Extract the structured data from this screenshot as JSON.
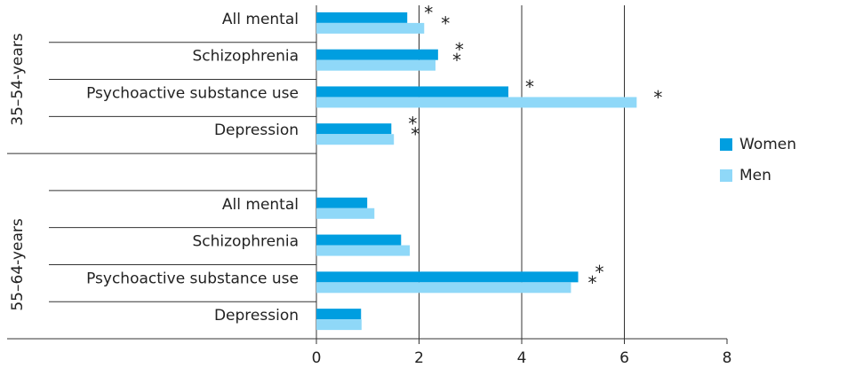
{
  "chart_data": {
    "type": "bar",
    "orientation": "horizontal",
    "group_labels": [
      "35–54-years",
      "55–64-years"
    ],
    "categories": [
      "All mental",
      "Schizophrenia",
      "Psychoactive substance use",
      "Depression",
      null,
      "All mental",
      "Schizophrenia",
      "Psychoactive substance use",
      "Depression"
    ],
    "series": [
      {
        "name": "Women",
        "color": "#009ee0",
        "values": [
          1.77,
          2.37,
          3.74,
          1.46,
          null,
          0.99,
          1.65,
          5.1,
          0.87
        ],
        "markers": [
          "*",
          "*",
          "*",
          "*",
          null,
          null,
          null,
          "*",
          null
        ]
      },
      {
        "name": "Men",
        "color": "#8fd8f8",
        "values": [
          2.1,
          2.32,
          6.24,
          1.51,
          null,
          1.13,
          1.82,
          4.96,
          0.88
        ],
        "markers": [
          "*",
          "*",
          "*",
          "*",
          null,
          null,
          null,
          "*",
          null
        ]
      }
    ],
    "xlim": [
      0,
      8
    ],
    "xticks": [
      0,
      2,
      4,
      6,
      8
    ],
    "grid": true,
    "legend": "right"
  }
}
